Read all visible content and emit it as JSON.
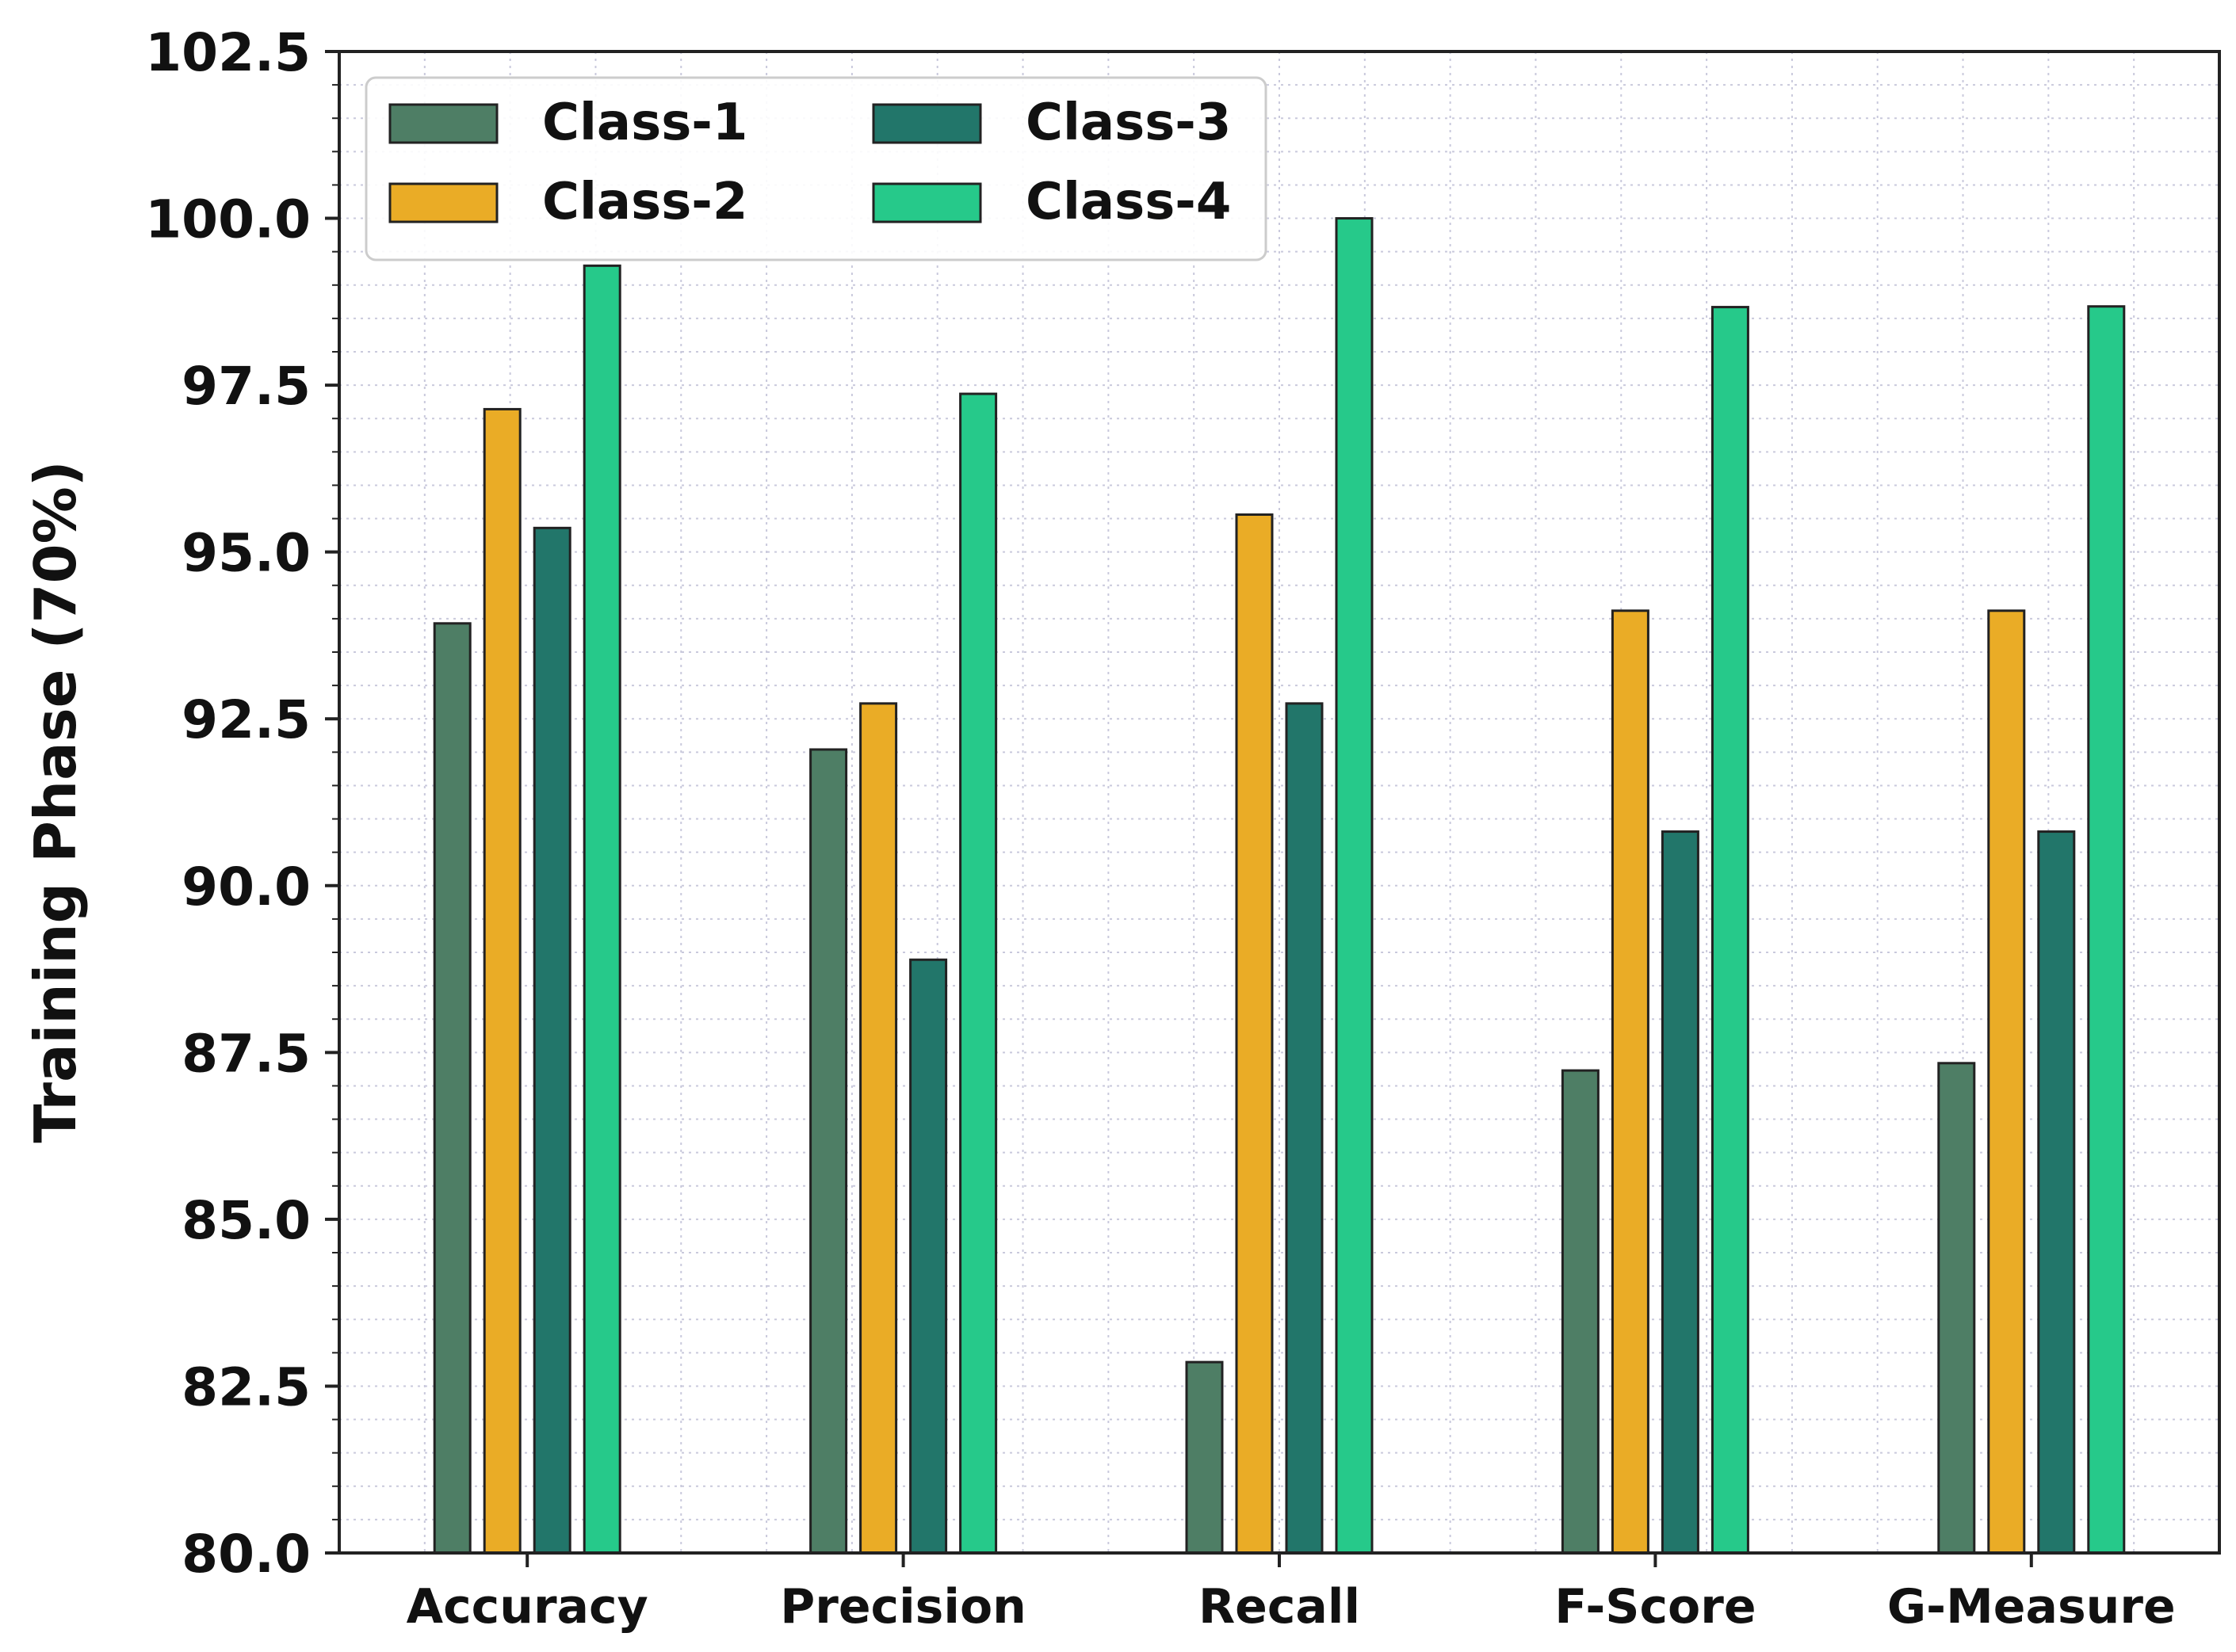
{
  "chart_data": {
    "type": "bar",
    "title": "",
    "xlabel": "",
    "ylabel": "Training Phase (70%)",
    "ylim": [
      80.0,
      102.5
    ],
    "yticks": [
      "80.0",
      "82.5",
      "85.0",
      "87.5",
      "90.0",
      "92.5",
      "95.0",
      "97.5",
      "100.0",
      "102.5"
    ],
    "ytick_values": [
      80.0,
      82.5,
      85.0,
      87.5,
      90.0,
      92.5,
      95.0,
      97.5,
      100.0,
      102.5
    ],
    "categories": [
      "Accuracy",
      "Precision",
      "Recall",
      "F-Score",
      "G-Measure"
    ],
    "series": [
      {
        "name": "Class-1",
        "color": "#4e7e65",
        "values": [
          93.93,
          92.04,
          82.86,
          87.23,
          87.34
        ]
      },
      {
        "name": "Class-2",
        "color": "#eaac26",
        "values": [
          97.14,
          92.73,
          95.56,
          94.12,
          94.12
        ]
      },
      {
        "name": "Class-3",
        "color": "#22766a",
        "values": [
          95.36,
          88.89,
          92.73,
          90.81,
          90.81
        ]
      },
      {
        "name": "Class-4",
        "color": "#26c98a",
        "values": [
          99.29,
          97.37,
          100.0,
          98.67,
          98.68
        ]
      }
    ],
    "grid": true,
    "legend": {
      "location": "upper-left",
      "columns": 2
    }
  }
}
